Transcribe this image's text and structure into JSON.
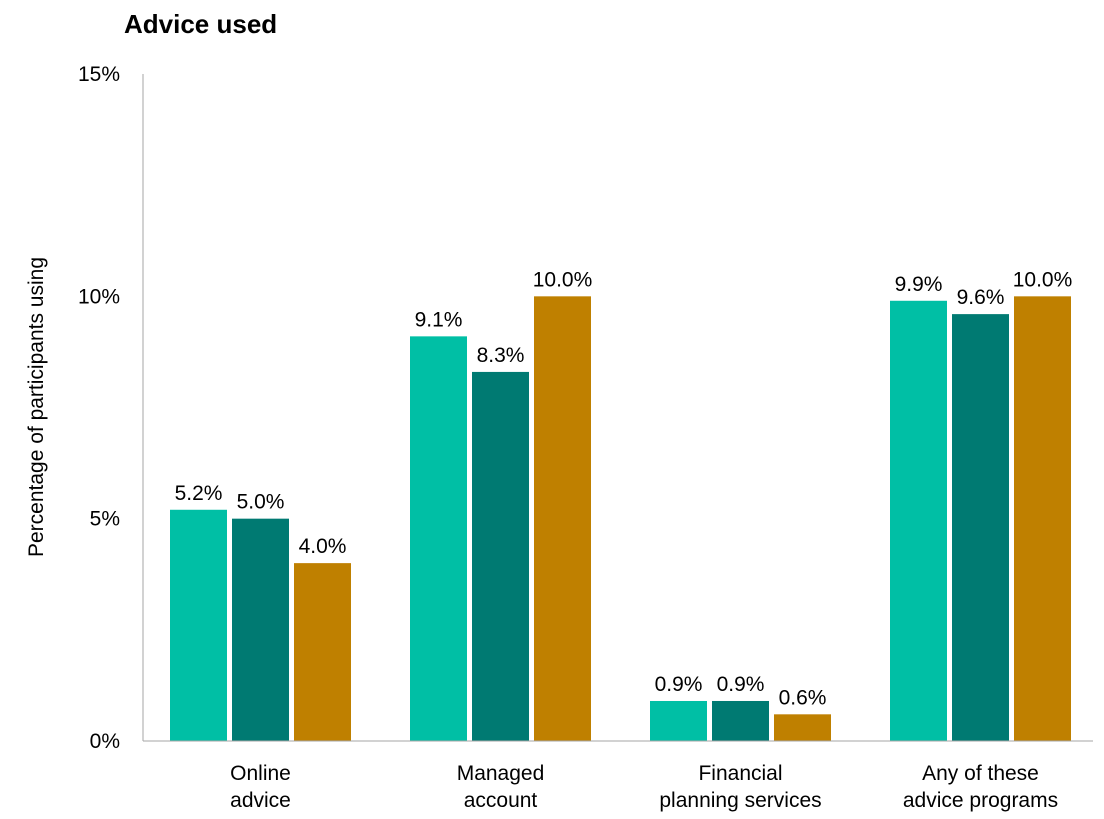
{
  "chart_data": {
    "type": "bar",
    "title": "Advice used",
    "xlabel": "",
    "ylabel": "Percentage of participants using",
    "ylim": [
      0,
      15
    ],
    "yticks": [
      {
        "value": 0,
        "label": "0%"
      },
      {
        "value": 5,
        "label": "5%"
      },
      {
        "value": 10,
        "label": "10%"
      },
      {
        "value": 15,
        "label": "15%"
      }
    ],
    "grid": false,
    "legend": "none",
    "categories": [
      [
        "Online",
        "advice"
      ],
      [
        "Managed",
        "account"
      ],
      [
        "Financial",
        "planning services"
      ],
      [
        "Any of these",
        "advice programs"
      ]
    ],
    "series": [
      {
        "color": "#00bfa5",
        "values": [
          5.2,
          9.1,
          0.9,
          9.9
        ],
        "labels": [
          "5.2%",
          "9.1%",
          "0.9%",
          "9.9%"
        ]
      },
      {
        "color": "#007a72",
        "values": [
          5.0,
          8.3,
          0.9,
          9.6
        ],
        "labels": [
          "5.0%",
          "8.3%",
          "0.9%",
          "9.6%"
        ]
      },
      {
        "color": "#bf8000",
        "values": [
          4.0,
          10.0,
          0.6,
          10.0
        ],
        "labels": [
          "4.0%",
          "10.0%",
          "0.6%",
          "10.0%"
        ]
      }
    ]
  }
}
